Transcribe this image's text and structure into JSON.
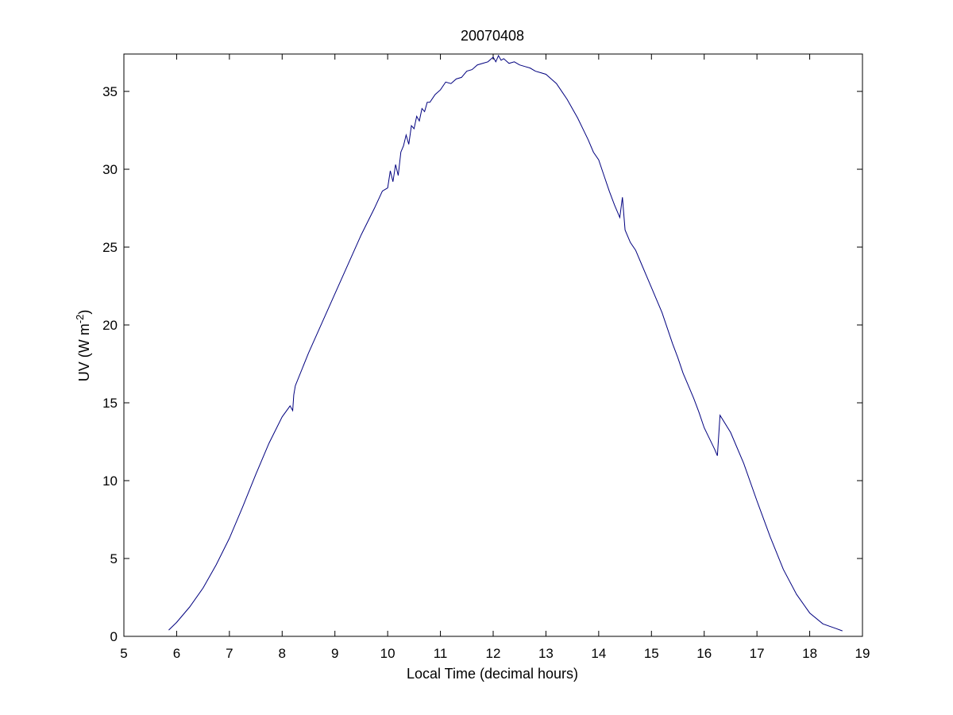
{
  "chart_data": {
    "type": "line",
    "title": "20070408",
    "xlabel": "Local Time (decimal hours)",
    "ylabel": {
      "prefix": "UV (W m",
      "superscript": "-2",
      "suffix": ")"
    },
    "xlim": [
      5,
      19
    ],
    "ylim": [
      0,
      37.4
    ],
    "xticks": [
      "5",
      "6",
      "7",
      "8",
      "9",
      "10",
      "11",
      "12",
      "13",
      "14",
      "15",
      "16",
      "17",
      "18",
      "19"
    ],
    "yticks": [
      "0",
      "5",
      "10",
      "15",
      "20",
      "25",
      "30",
      "35"
    ],
    "grid": false,
    "line_color": "#00007f",
    "series": [
      {
        "x": [
          5.85,
          6.0,
          6.25,
          6.5,
          6.75,
          7.0,
          7.25,
          7.5,
          7.75,
          8.0,
          8.15,
          8.2,
          8.22,
          8.25,
          8.5,
          8.75,
          9.0,
          9.25,
          9.5,
          9.75,
          9.9,
          10.0,
          10.05,
          10.1,
          10.15,
          10.2,
          10.25,
          10.3,
          10.35,
          10.4,
          10.45,
          10.5,
          10.55,
          10.6,
          10.65,
          10.7,
          10.75,
          10.8,
          10.9,
          11.0,
          11.1,
          11.2,
          11.3,
          11.4,
          11.5,
          11.6,
          11.7,
          11.8,
          11.9,
          12.0,
          12.05,
          12.1,
          12.15,
          12.2,
          12.3,
          12.4,
          12.5,
          12.6,
          12.7,
          12.8,
          12.9,
          13.0,
          13.1,
          13.2,
          13.3,
          13.4,
          13.5,
          13.6,
          13.7,
          13.8,
          13.9,
          14.0,
          14.1,
          14.2,
          14.3,
          14.4,
          14.45,
          14.5,
          14.6,
          14.7,
          14.8,
          14.9,
          15.0,
          15.1,
          15.2,
          15.3,
          15.4,
          15.5,
          15.6,
          15.7,
          15.8,
          15.9,
          16.0,
          16.1,
          16.2,
          16.25,
          16.3,
          16.5,
          16.75,
          17.0,
          17.25,
          17.5,
          17.75,
          18.0,
          18.25,
          18.5,
          18.62
        ],
        "y": [
          0.4,
          0.9,
          1.9,
          3.1,
          4.6,
          6.3,
          8.3,
          10.4,
          12.4,
          14.1,
          14.8,
          14.5,
          15.5,
          16.1,
          18.2,
          20.1,
          22.0,
          23.9,
          25.8,
          27.5,
          28.6,
          28.8,
          29.9,
          29.2,
          30.3,
          29.6,
          31.1,
          31.5,
          32.2,
          31.6,
          32.8,
          32.6,
          33.4,
          33.1,
          33.9,
          33.7,
          34.3,
          34.3,
          34.8,
          35.1,
          35.6,
          35.5,
          35.8,
          35.9,
          36.3,
          36.4,
          36.7,
          36.8,
          36.9,
          37.2,
          36.9,
          37.3,
          37.0,
          37.1,
          36.8,
          36.9,
          36.7,
          36.6,
          36.5,
          36.3,
          36.2,
          36.1,
          35.8,
          35.5,
          35.0,
          34.5,
          33.9,
          33.3,
          32.6,
          31.9,
          31.1,
          30.6,
          29.6,
          28.6,
          27.7,
          26.9,
          28.2,
          26.1,
          25.3,
          24.8,
          24.0,
          23.2,
          22.4,
          21.6,
          20.8,
          19.8,
          18.8,
          17.9,
          16.9,
          16.1,
          15.3,
          14.4,
          13.4,
          12.7,
          12.0,
          11.6,
          14.2,
          13.1,
          11.1,
          8.7,
          6.4,
          4.3,
          2.7,
          1.5,
          0.8,
          0.5,
          0.35
        ]
      }
    ]
  }
}
